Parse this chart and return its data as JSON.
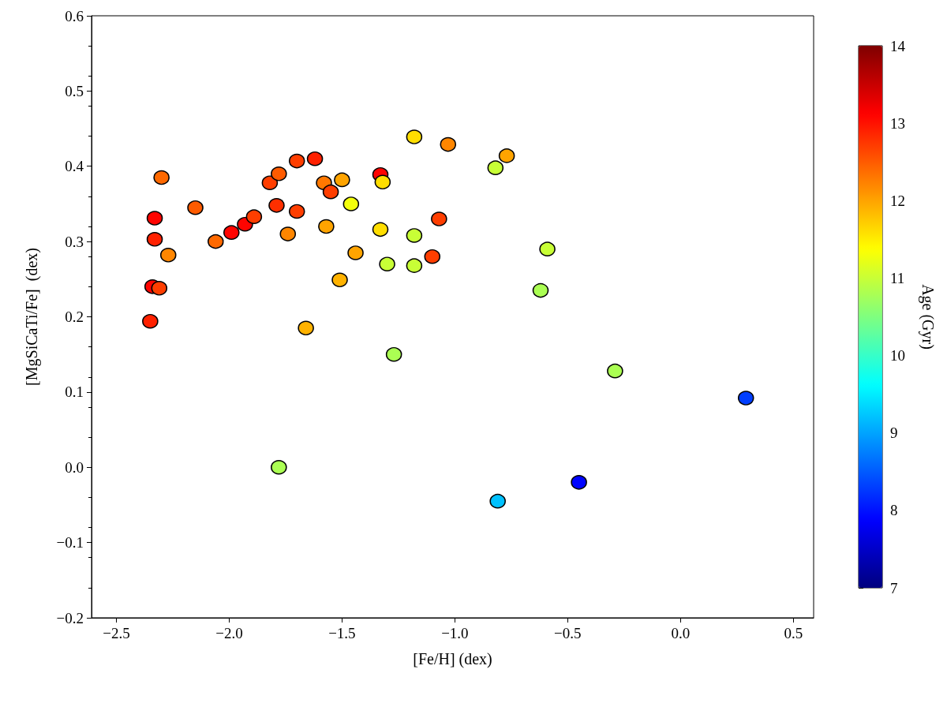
{
  "chart_data": {
    "type": "scatter",
    "xlabel": "[Fe/H] (dex)",
    "ylabel": "[MgSiCaTi/Fe]  (dex)",
    "clabel": "Age (Gyr)",
    "marker": "circle",
    "x": [
      -2.35,
      -2.34,
      -2.31,
      -2.33,
      -2.33,
      -2.27,
      -2.3,
      -2.15,
      -2.06,
      -1.99,
      -1.93,
      -1.89,
      -1.82,
      -1.78,
      -1.79,
      -1.74,
      -1.7,
      -1.7,
      -1.62,
      -1.58,
      -1.55,
      -1.57,
      -1.5,
      -1.46,
      -1.51,
      -1.44,
      -1.66,
      -1.33,
      -1.32,
      -1.33,
      -1.3,
      -1.27,
      -1.18,
      -1.18,
      -1.18,
      -1.1,
      -1.07,
      -1.03,
      -0.82,
      -0.77,
      -0.59,
      -0.62,
      -0.29,
      -1.78,
      -0.81,
      -0.45,
      0.29
    ],
    "values": [
      0.194,
      0.24,
      0.238,
      0.303,
      0.331,
      0.282,
      0.385,
      0.345,
      0.3,
      0.312,
      0.323,
      0.333,
      0.378,
      0.39,
      0.348,
      0.31,
      0.407,
      0.34,
      0.41,
      0.378,
      0.366,
      0.32,
      0.382,
      0.35,
      0.249,
      0.285,
      0.185,
      0.389,
      0.379,
      0.316,
      0.27,
      0.15,
      0.439,
      0.308,
      0.268,
      0.28,
      0.33,
      0.429,
      0.398,
      0.414,
      0.29,
      0.235,
      0.128,
      0.0,
      -0.045,
      -0.02,
      0.092
    ],
    "cvalues": [
      12.9,
      13.1,
      12.7,
      12.9,
      13.1,
      12.2,
      12.4,
      12.5,
      12.4,
      13.1,
      13.1,
      12.7,
      12.7,
      12.5,
      12.8,
      12.2,
      12.7,
      12.7,
      12.9,
      12.3,
      12.7,
      12.0,
      12.0,
      11.3,
      11.9,
      12.0,
      11.9,
      13.1,
      11.6,
      11.6,
      11.0,
      10.8,
      11.6,
      11.0,
      11.0,
      12.7,
      12.7,
      12.2,
      11.0,
      12.0,
      11.0,
      10.8,
      10.8,
      10.8,
      9.2,
      7.9,
      8.3
    ],
    "xlim": [
      -2.61,
      0.59
    ],
    "xticks": [
      {
        "value": -2.5,
        "label": "−2.5"
      },
      {
        "value": -2.0,
        "label": "−2.0"
      },
      {
        "value": -1.5,
        "label": "−1.5"
      },
      {
        "value": -1.0,
        "label": "−1.0"
      },
      {
        "value": -0.5,
        "label": "−0.5"
      },
      {
        "value": 0,
        "label": "0.0"
      },
      {
        "value": 0.5,
        "label": "0.5"
      }
    ],
    "ylim": [
      -0.2,
      0.6
    ],
    "yticks": [
      {
        "value": -0.2,
        "label": "−0.2"
      },
      {
        "value": -0.1,
        "label": "−0.1"
      },
      {
        "value": 0,
        "label": "0.0"
      },
      {
        "value": 0.1,
        "label": "0.1"
      },
      {
        "value": 0.2,
        "label": "0.2"
      },
      {
        "value": 0.3,
        "label": "0.3"
      },
      {
        "value": 0.4,
        "label": "0.4"
      },
      {
        "value": 0.5,
        "label": "0.5"
      },
      {
        "value": 0.6,
        "label": "0.6"
      }
    ],
    "clim": [
      7,
      14
    ],
    "cticks": [
      7,
      8,
      9,
      10,
      11,
      12,
      13,
      14
    ]
  }
}
